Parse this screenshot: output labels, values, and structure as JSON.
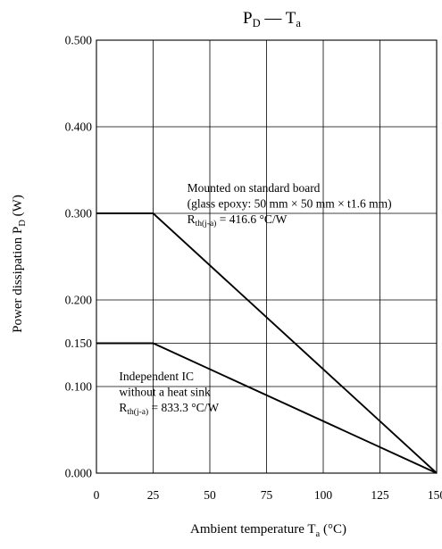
{
  "chart_data": {
    "type": "line",
    "title": {
      "main": "P",
      "main_sub": "D",
      "dash": " — ",
      "second": "T",
      "second_sub": "a"
    },
    "xlabel": {
      "text": "Ambient temperature  T",
      "sub": "a",
      "unit": "  (°C)"
    },
    "ylabel": {
      "text": "Power dissipation  P",
      "sub": "D",
      "unit": "  (W)"
    },
    "xlim": [
      0,
      150
    ],
    "ylim": [
      0,
      0.5
    ],
    "grid": true,
    "x_ticks": [
      {
        "value": 0,
        "label": "0"
      },
      {
        "value": 25,
        "label": "25"
      },
      {
        "value": 50,
        "label": "50"
      },
      {
        "value": 75,
        "label": "75"
      },
      {
        "value": 100,
        "label": "100"
      },
      {
        "value": 125,
        "label": "125"
      },
      {
        "value": 150,
        "label": "150"
      }
    ],
    "y_ticks": [
      {
        "value": 0.0,
        "label": "0.000"
      },
      {
        "value": 0.1,
        "label": "0.100"
      },
      {
        "value": 0.15,
        "label": "0.150"
      },
      {
        "value": 0.2,
        "label": "0.200"
      },
      {
        "value": 0.3,
        "label": "0.300"
      },
      {
        "value": 0.4,
        "label": "0.400"
      },
      {
        "value": 0.5,
        "label": "0.500"
      }
    ],
    "series": [
      {
        "x": [
          0,
          25,
          150
        ],
        "y": [
          0.3,
          0.3,
          0.0
        ]
      },
      {
        "x": [
          0,
          25,
          150
        ],
        "y": [
          0.15,
          0.15,
          0.0
        ]
      }
    ],
    "annotations": [
      {
        "lines": [
          {
            "text": "Mounted on standard board"
          },
          {
            "text": "(glass epoxy: 50 mm × 50 mm × t1.6 mm)"
          },
          {
            "text": "R",
            "sub": "th(j-a)",
            "rest": " = 416.6 °C/W"
          }
        ],
        "anchor": [
          40,
          0.325
        ]
      },
      {
        "lines": [
          {
            "text": "Independent IC"
          },
          {
            "text": "without a heat sink"
          },
          {
            "text": "R",
            "sub": "th(j-a)",
            "rest": " = 833.3 °C/W"
          }
        ],
        "anchor": [
          10,
          0.107
        ]
      }
    ]
  }
}
